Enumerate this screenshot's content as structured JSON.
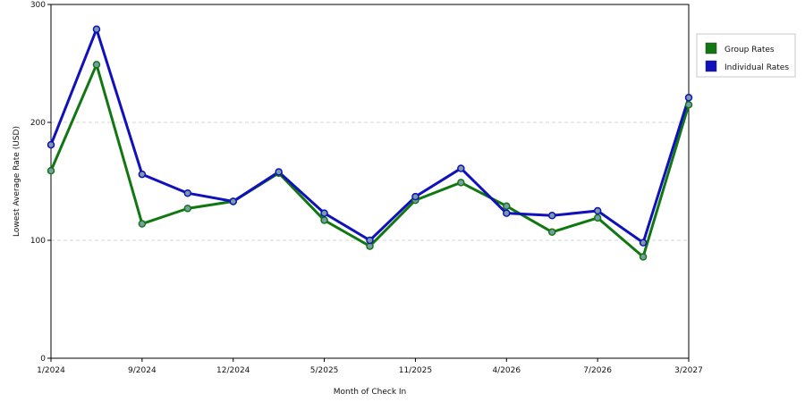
{
  "chart_data": {
    "type": "line",
    "xlabel": "Month of Check In",
    "ylabel": "Lowest Average Rate (USD)",
    "ylim": [
      0,
      300
    ],
    "yticks": [
      0,
      100,
      200,
      300
    ],
    "grid": "horizontal dashed",
    "legend_position": "top-right",
    "x_tick_labels": [
      "1/2024",
      "9/2024",
      "12/2024",
      "5/2025",
      "11/2025",
      "4/2026",
      "7/2026",
      "3/2027"
    ],
    "x_tick_point_index": [
      0,
      2,
      4,
      6,
      8,
      10,
      12,
      14
    ],
    "series": [
      {
        "name": "Group Rates",
        "color": "#117711",
        "values": [
          159,
          249,
          114,
          127,
          133,
          157,
          117,
          95,
          134,
          149,
          129,
          107,
          119,
          86,
          215
        ]
      },
      {
        "name": "Individual Rates",
        "color": "#1111bb",
        "values": [
          181,
          279,
          156,
          140,
          133,
          158,
          123,
          100,
          137,
          161,
          123,
          121,
          125,
          98,
          221
        ]
      }
    ]
  }
}
